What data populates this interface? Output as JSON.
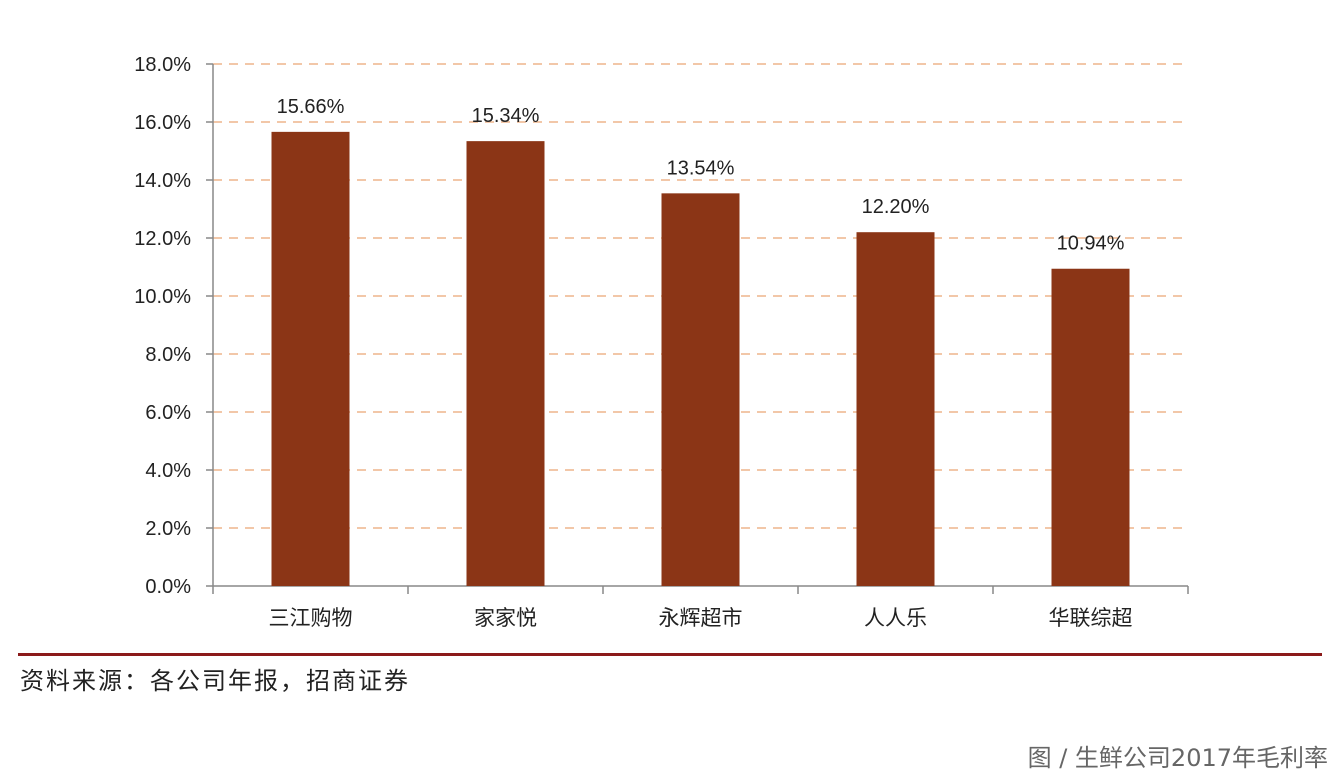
{
  "chart_data": {
    "type": "bar",
    "categories": [
      "三江购物",
      "家家悦",
      "永辉超市",
      "人人乐",
      "华联综超"
    ],
    "values": [
      15.66,
      15.34,
      13.54,
      12.2,
      10.94
    ],
    "data_labels": [
      "15.66%",
      "15.34%",
      "13.54%",
      "12.20%",
      "10.94%"
    ],
    "y_ticks": [
      "0.0%",
      "2.0%",
      "4.0%",
      "6.0%",
      "8.0%",
      "10.0%",
      "12.0%",
      "14.0%",
      "16.0%",
      "18.0%"
    ],
    "ylim": [
      0,
      18
    ],
    "grid": true,
    "bar_color": "#8b3516",
    "grid_color": "#f2c7a8"
  },
  "source": "资料来源：各公司年报，招商证券",
  "caption": "图 / 生鲜公司2017年毛利率",
  "colors": {
    "rule": "#8b1a1a",
    "axis": "#888888"
  }
}
